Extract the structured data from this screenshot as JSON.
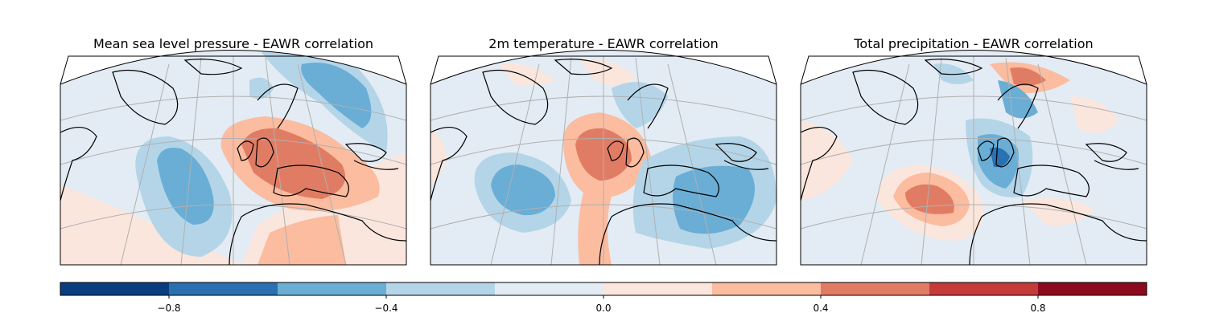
{
  "figure": {
    "panels": [
      {
        "id": "mslp",
        "title": "Mean sea level pressure - EAWR correlation"
      },
      {
        "id": "t2m",
        "title": "2m temperature - EAWR correlation"
      },
      {
        "id": "tp",
        "title": "Total precipitation - EAWR correlation"
      }
    ]
  },
  "colorbar": {
    "range": [
      -1.0,
      1.0
    ],
    "levels": [
      -1.0,
      -0.8,
      -0.6,
      -0.4,
      -0.2,
      0.0,
      0.2,
      0.4,
      0.6,
      0.8,
      1.0
    ],
    "colors": [
      "#083d7f",
      "#2a71b2",
      "#6aaed6",
      "#b4d5e8",
      "#e3ecf4",
      "#fbe6dd",
      "#fbbca0",
      "#e17c64",
      "#c43b3a",
      "#8b0a1d"
    ],
    "ticks": [
      -0.8,
      -0.4,
      0.0,
      0.4,
      0.8
    ],
    "tick_labels": [
      "−0.8",
      "−0.4",
      "0.0",
      "0.4",
      "0.8"
    ]
  },
  "map_style": {
    "gridline_color": "#b0b0b0",
    "coastline_color": "#000000",
    "background": "#ffffff"
  }
}
